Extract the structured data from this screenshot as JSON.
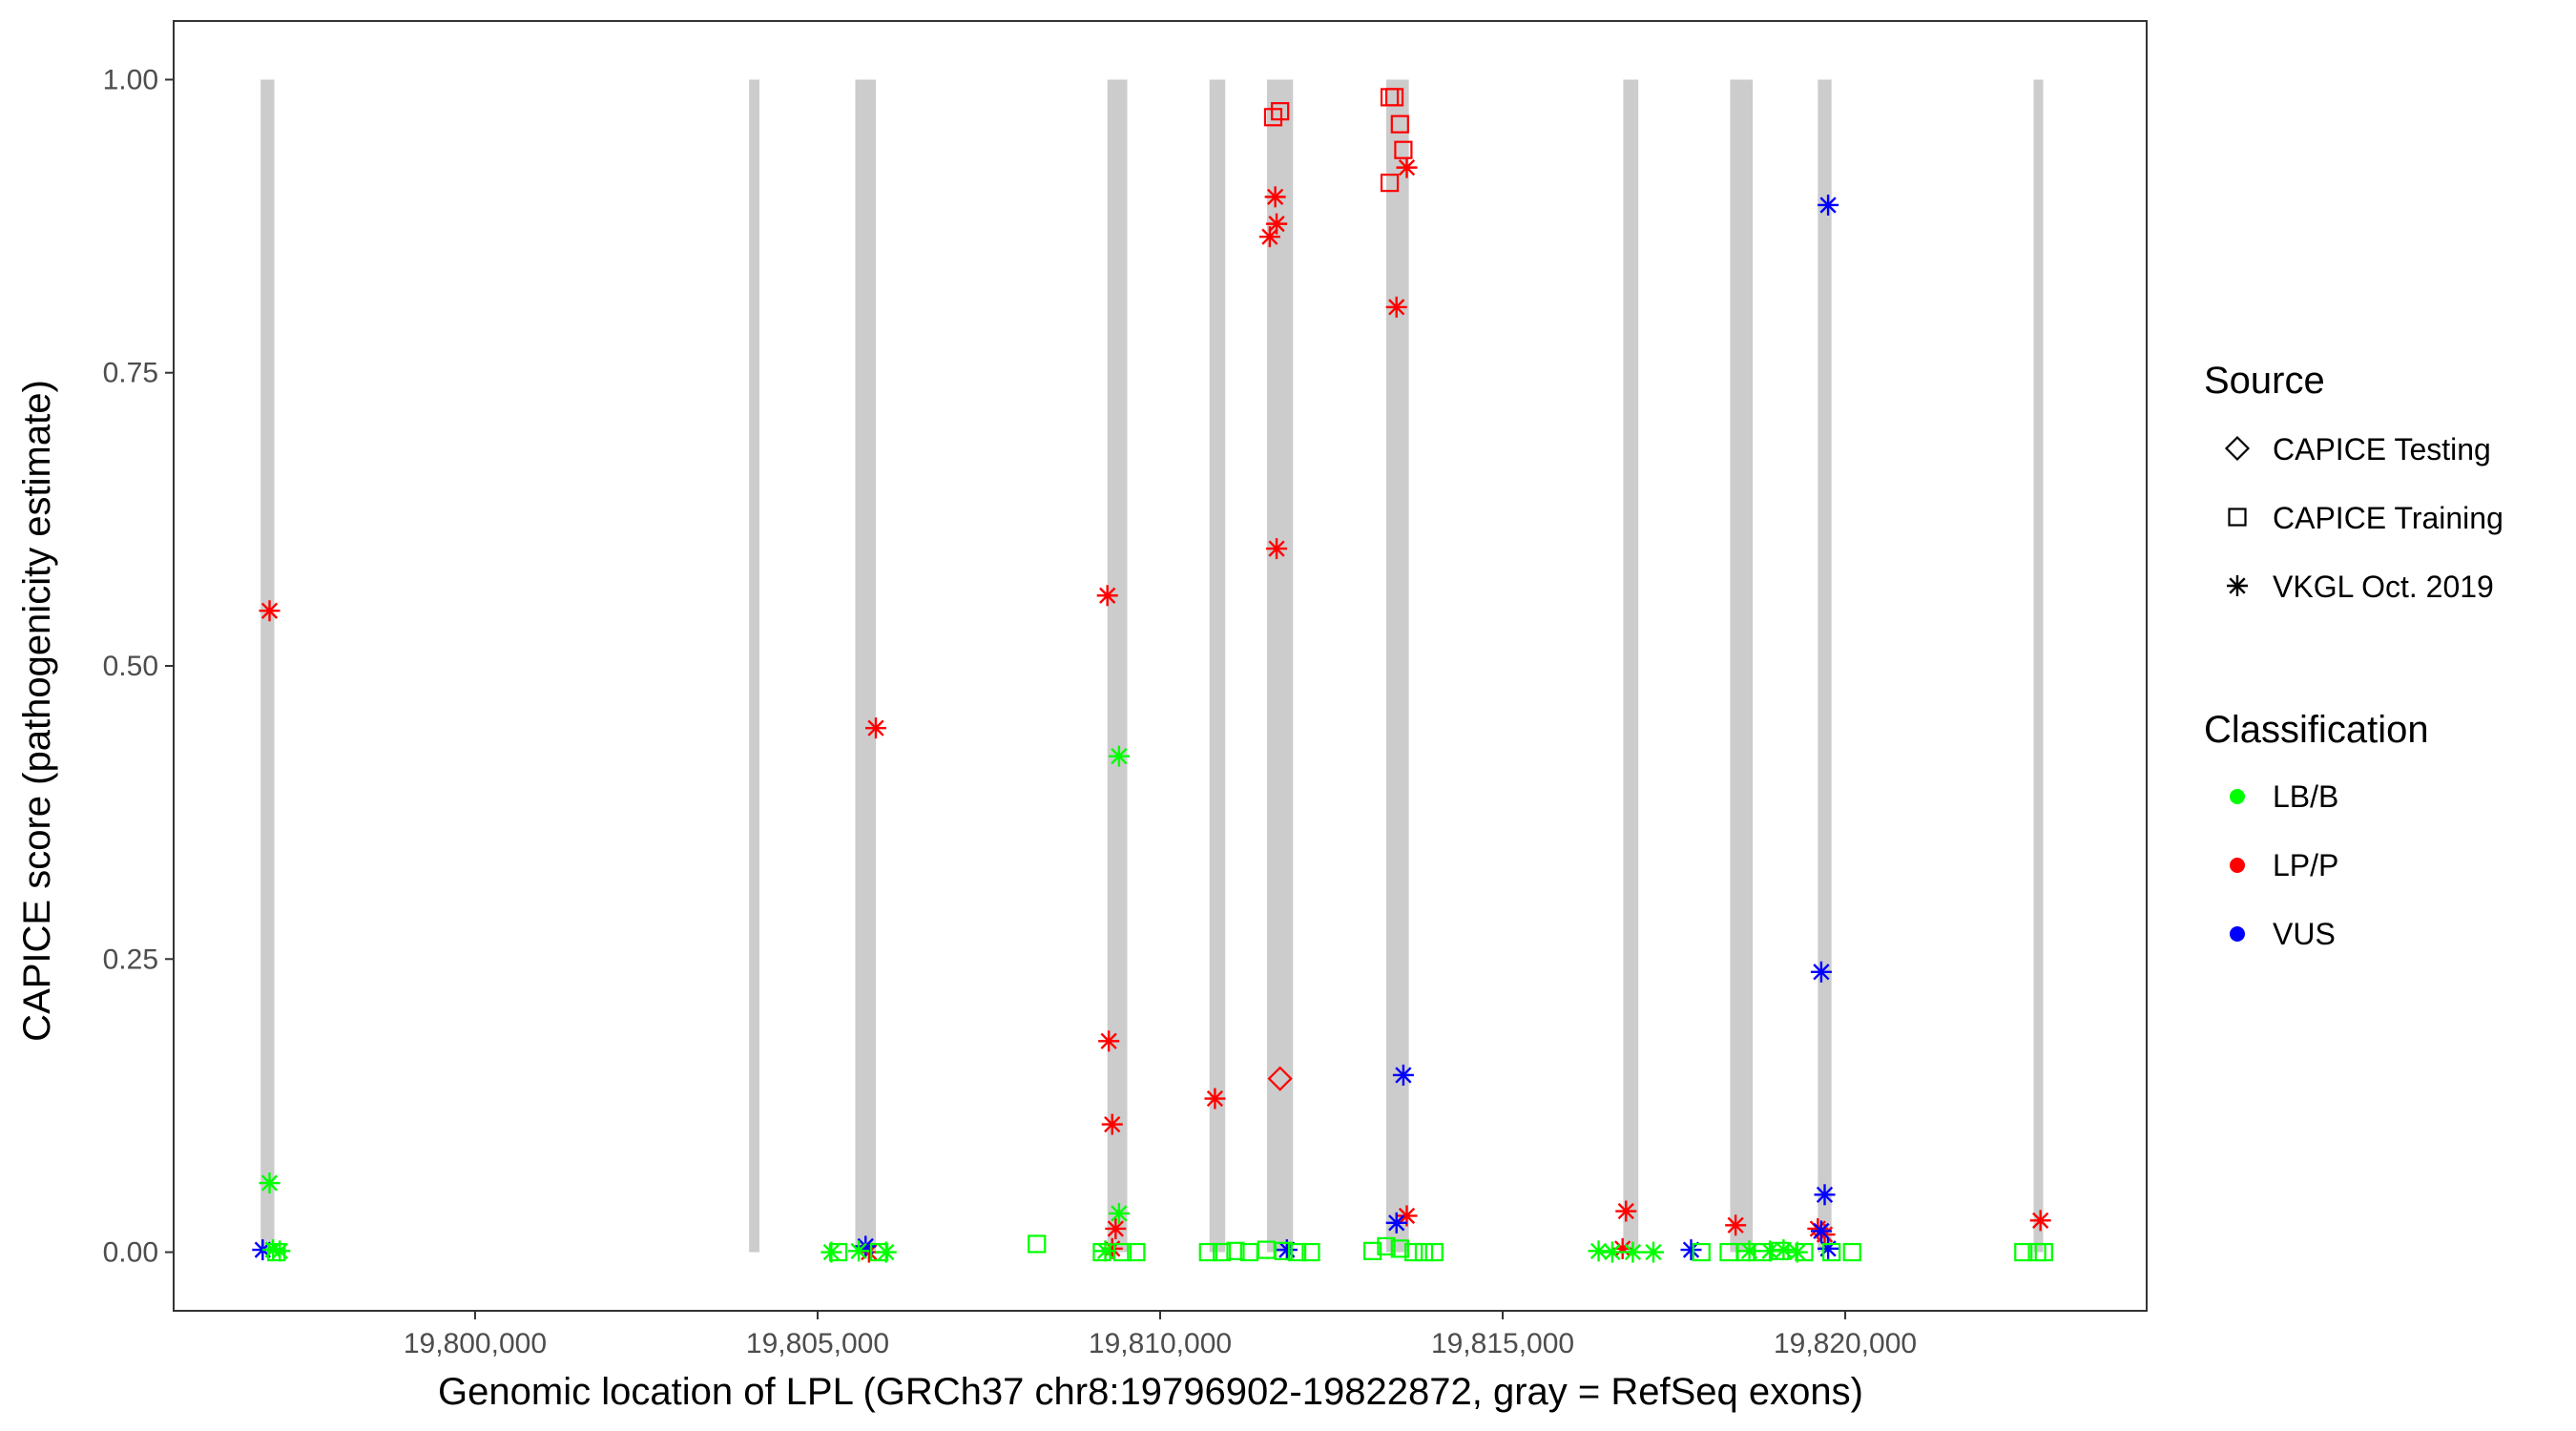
{
  "chart_data": {
    "type": "scatter",
    "xlabel": "Genomic location of LPL (GRCh37 chr8:19796902-19822872, gray = RefSeq exons)",
    "ylabel": "CAPICE score (pathogenicity estimate)",
    "xlim": [
      19795600,
      19824400
    ],
    "ylim": [
      -0.05,
      1.05
    ],
    "x_ticks": [
      19800000,
      19805000,
      19810000,
      19815000,
      19820000
    ],
    "x_tick_labels": [
      "19,800,000",
      "19,805,000",
      "19,810,000",
      "19,815,000",
      "19,820,000"
    ],
    "y_ticks": [
      0,
      0.25,
      0.5,
      0.75,
      1.0
    ],
    "y_tick_labels": [
      "0.00",
      "0.25",
      "0.50",
      "0.75",
      "1.00"
    ],
    "exon_color": "#cccccc",
    "exons": [
      [
        19796870,
        19797070
      ],
      [
        19804000,
        19804150
      ],
      [
        19805550,
        19805850
      ],
      [
        19809230,
        19809520
      ],
      [
        19810720,
        19810950
      ],
      [
        19811560,
        19811940
      ],
      [
        19813300,
        19813630
      ],
      [
        19816760,
        19816980
      ],
      [
        19818320,
        19818650
      ],
      [
        19819600,
        19819800
      ],
      [
        19822750,
        19822850
      ]
    ],
    "legend_source": {
      "title": "Source",
      "items": [
        {
          "label": "CAPICE Testing",
          "shape": "diamond"
        },
        {
          "label": "CAPICE Training",
          "shape": "square"
        },
        {
          "label": "VKGL Oct. 2019",
          "shape": "asterisk"
        }
      ]
    },
    "legend_classification": {
      "title": "Classification",
      "items": [
        {
          "label": "LB/B",
          "color": "#00ff00"
        },
        {
          "label": "LP/P",
          "color": "#ff0000"
        },
        {
          "label": "VUS",
          "color": "#0000ff"
        }
      ]
    },
    "series": [
      {
        "name": "LP/P",
        "color": "#ff0000",
        "points": [
          {
            "x": 19797000,
            "y": 0.547,
            "shape": "asterisk"
          },
          {
            "x": 19805850,
            "y": 0.447,
            "shape": "asterisk"
          },
          {
            "x": 19805750,
            "y": 0.0,
            "shape": "asterisk"
          },
          {
            "x": 19809230,
            "y": 0.56,
            "shape": "asterisk"
          },
          {
            "x": 19809250,
            "y": 0.18,
            "shape": "asterisk"
          },
          {
            "x": 19809300,
            "y": 0.109,
            "shape": "asterisk"
          },
          {
            "x": 19809350,
            "y": 0.02,
            "shape": "asterisk"
          },
          {
            "x": 19809300,
            "y": 0.003,
            "shape": "asterisk"
          },
          {
            "x": 19810800,
            "y": 0.131,
            "shape": "asterisk"
          },
          {
            "x": 19811600,
            "y": 0.866,
            "shape": "asterisk"
          },
          {
            "x": 19811700,
            "y": 0.877,
            "shape": "asterisk"
          },
          {
            "x": 19811680,
            "y": 0.9,
            "shape": "asterisk"
          },
          {
            "x": 19811700,
            "y": 0.6,
            "shape": "asterisk"
          },
          {
            "x": 19813450,
            "y": 0.806,
            "shape": "asterisk"
          },
          {
            "x": 19813600,
            "y": 0.925,
            "shape": "asterisk"
          },
          {
            "x": 19813600,
            "y": 0.031,
            "shape": "asterisk"
          },
          {
            "x": 19816800,
            "y": 0.035,
            "shape": "asterisk"
          },
          {
            "x": 19816750,
            "y": 0.003,
            "shape": "asterisk"
          },
          {
            "x": 19818400,
            "y": 0.023,
            "shape": "asterisk"
          },
          {
            "x": 19819600,
            "y": 0.02,
            "shape": "asterisk"
          },
          {
            "x": 19819700,
            "y": 0.015,
            "shape": "asterisk"
          },
          {
            "x": 19822850,
            "y": 0.027,
            "shape": "asterisk"
          },
          {
            "x": 19811750,
            "y": 0.148,
            "shape": "diamond"
          },
          {
            "x": 19811650,
            "y": 0.968,
            "shape": "square"
          },
          {
            "x": 19811750,
            "y": 0.973,
            "shape": "square"
          },
          {
            "x": 19813350,
            "y": 0.985,
            "shape": "square"
          },
          {
            "x": 19813420,
            "y": 0.985,
            "shape": "square"
          },
          {
            "x": 19813500,
            "y": 0.962,
            "shape": "square"
          },
          {
            "x": 19813550,
            "y": 0.94,
            "shape": "square"
          },
          {
            "x": 19813350,
            "y": 0.912,
            "shape": "square"
          }
        ]
      },
      {
        "name": "VUS",
        "color": "#0000ff",
        "points": [
          {
            "x": 19796900,
            "y": 0.002,
            "shape": "asterisk"
          },
          {
            "x": 19805700,
            "y": 0.005,
            "shape": "asterisk"
          },
          {
            "x": 19811850,
            "y": 0.002,
            "shape": "asterisk"
          },
          {
            "x": 19813550,
            "y": 0.151,
            "shape": "asterisk"
          },
          {
            "x": 19813450,
            "y": 0.025,
            "shape": "asterisk"
          },
          {
            "x": 19817750,
            "y": 0.002,
            "shape": "asterisk"
          },
          {
            "x": 19819750,
            "y": 0.893,
            "shape": "asterisk"
          },
          {
            "x": 19819650,
            "y": 0.239,
            "shape": "asterisk"
          },
          {
            "x": 19819700,
            "y": 0.049,
            "shape": "asterisk"
          },
          {
            "x": 19819650,
            "y": 0.018,
            "shape": "asterisk"
          },
          {
            "x": 19819750,
            "y": 0.003,
            "shape": "asterisk"
          }
        ]
      },
      {
        "name": "LB/B",
        "color": "#00ff00",
        "points": [
          {
            "x": 19797000,
            "y": 0.059,
            "shape": "asterisk"
          },
          {
            "x": 19797050,
            "y": 0.002,
            "shape": "asterisk"
          },
          {
            "x": 19797150,
            "y": 0.001,
            "shape": "asterisk"
          },
          {
            "x": 19805200,
            "y": 0.0,
            "shape": "asterisk"
          },
          {
            "x": 19805600,
            "y": 0.001,
            "shape": "asterisk"
          },
          {
            "x": 19806000,
            "y": 0.0,
            "shape": "asterisk"
          },
          {
            "x": 19809400,
            "y": 0.423,
            "shape": "asterisk"
          },
          {
            "x": 19809400,
            "y": 0.033,
            "shape": "asterisk"
          },
          {
            "x": 19809200,
            "y": 0.001,
            "shape": "asterisk"
          },
          {
            "x": 19816400,
            "y": 0.001,
            "shape": "asterisk"
          },
          {
            "x": 19816600,
            "y": 0.0,
            "shape": "asterisk"
          },
          {
            "x": 19816900,
            "y": 0.0,
            "shape": "asterisk"
          },
          {
            "x": 19817200,
            "y": 0.0,
            "shape": "asterisk"
          },
          {
            "x": 19818600,
            "y": 0.001,
            "shape": "asterisk"
          },
          {
            "x": 19818900,
            "y": 0.001,
            "shape": "asterisk"
          },
          {
            "x": 19819100,
            "y": 0.002,
            "shape": "asterisk"
          },
          {
            "x": 19819300,
            "y": 0.0,
            "shape": "asterisk"
          },
          {
            "x": 19797100,
            "y": 0.0,
            "shape": "square"
          },
          {
            "x": 19805300,
            "y": 0.0,
            "shape": "square"
          },
          {
            "x": 19805900,
            "y": 0.0,
            "shape": "square"
          },
          {
            "x": 19808200,
            "y": 0.007,
            "shape": "square"
          },
          {
            "x": 19809150,
            "y": 0.0,
            "shape": "square"
          },
          {
            "x": 19809450,
            "y": 0.0,
            "shape": "square"
          },
          {
            "x": 19809650,
            "y": 0.0,
            "shape": "square"
          },
          {
            "x": 19810700,
            "y": 0.0,
            "shape": "square"
          },
          {
            "x": 19810900,
            "y": 0.0,
            "shape": "square"
          },
          {
            "x": 19811100,
            "y": 0.001,
            "shape": "square"
          },
          {
            "x": 19811300,
            "y": 0.0,
            "shape": "square"
          },
          {
            "x": 19811550,
            "y": 0.002,
            "shape": "square"
          },
          {
            "x": 19811800,
            "y": 0.001,
            "shape": "square"
          },
          {
            "x": 19812000,
            "y": 0.0,
            "shape": "square"
          },
          {
            "x": 19812200,
            "y": 0.0,
            "shape": "square"
          },
          {
            "x": 19813100,
            "y": 0.001,
            "shape": "square"
          },
          {
            "x": 19813300,
            "y": 0.005,
            "shape": "square"
          },
          {
            "x": 19813500,
            "y": 0.003,
            "shape": "square"
          },
          {
            "x": 19813700,
            "y": 0.0,
            "shape": "square"
          },
          {
            "x": 19813850,
            "y": 0.0,
            "shape": "square"
          },
          {
            "x": 19814000,
            "y": 0.0,
            "shape": "square"
          },
          {
            "x": 19817900,
            "y": 0.0,
            "shape": "square"
          },
          {
            "x": 19818300,
            "y": 0.0,
            "shape": "square"
          },
          {
            "x": 19818550,
            "y": 0.0,
            "shape": "square"
          },
          {
            "x": 19818800,
            "y": 0.0,
            "shape": "square"
          },
          {
            "x": 19819050,
            "y": 0.001,
            "shape": "square"
          },
          {
            "x": 19819400,
            "y": 0.0,
            "shape": "square"
          },
          {
            "x": 19819800,
            "y": 0.0,
            "shape": "square"
          },
          {
            "x": 19820100,
            "y": 0.0,
            "shape": "square"
          },
          {
            "x": 19822600,
            "y": 0.0,
            "shape": "square"
          },
          {
            "x": 19822800,
            "y": 0.0,
            "shape": "square"
          },
          {
            "x": 19822900,
            "y": 0.0,
            "shape": "square"
          }
        ]
      }
    ]
  }
}
